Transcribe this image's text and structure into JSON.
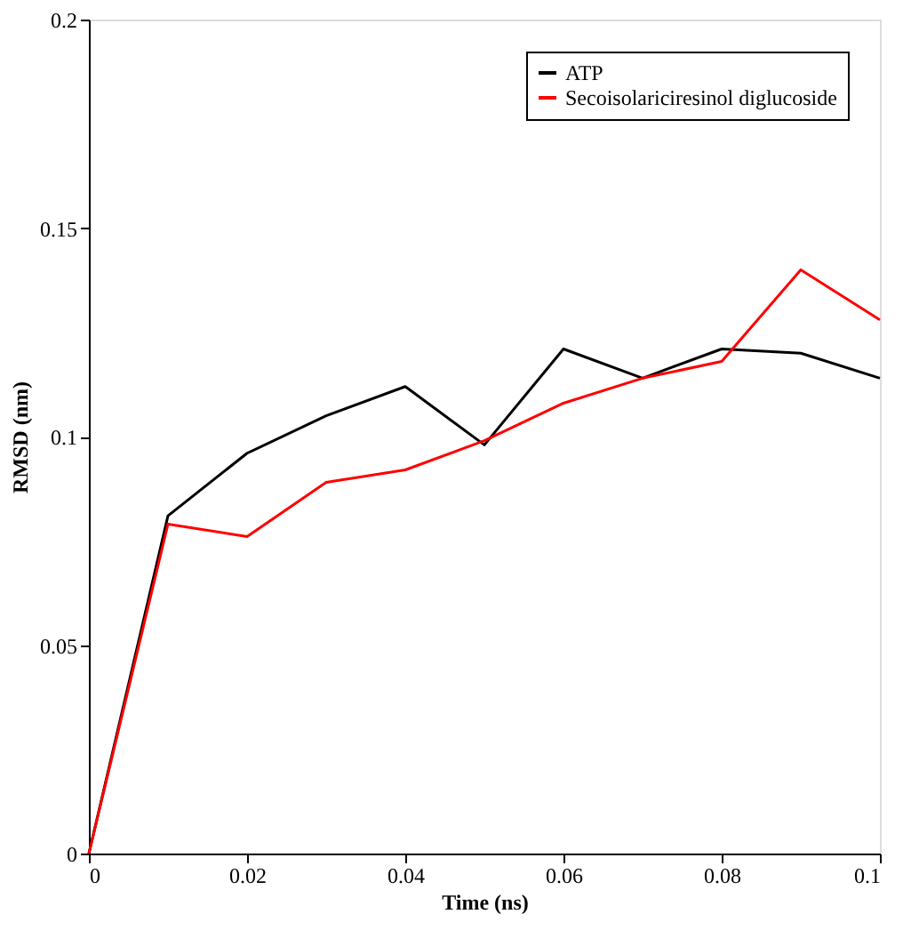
{
  "chart_data": {
    "type": "line",
    "xlabel": "Time (ns)",
    "ylabel": "RMSD (nm)",
    "x": [
      0,
      0.01,
      0.02,
      0.03,
      0.04,
      0.05,
      0.06,
      0.07,
      0.08,
      0.09,
      0.1
    ],
    "series": [
      {
        "name": "ATP",
        "color": "#000000",
        "values": [
          0,
          0.081,
          0.096,
          0.105,
          0.112,
          0.098,
          0.121,
          0.114,
          0.121,
          0.12,
          0.114
        ]
      },
      {
        "name": "Secoisolariciresinol diglucoside",
        "color": "#ff0000",
        "values": [
          0,
          0.079,
          0.076,
          0.089,
          0.092,
          0.099,
          0.108,
          0.114,
          0.118,
          0.14,
          0.128
        ]
      }
    ],
    "xlim": [
      0,
      0.1
    ],
    "xticks": [
      0,
      0.02,
      0.04,
      0.06,
      0.08,
      0.1
    ],
    "ylim": [
      0,
      0.2
    ],
    "yticks": [
      0,
      0.05,
      0.1,
      0.15,
      0.2
    ],
    "grid": false,
    "legend": "top right",
    "marker": "none",
    "line_style": "solid"
  }
}
